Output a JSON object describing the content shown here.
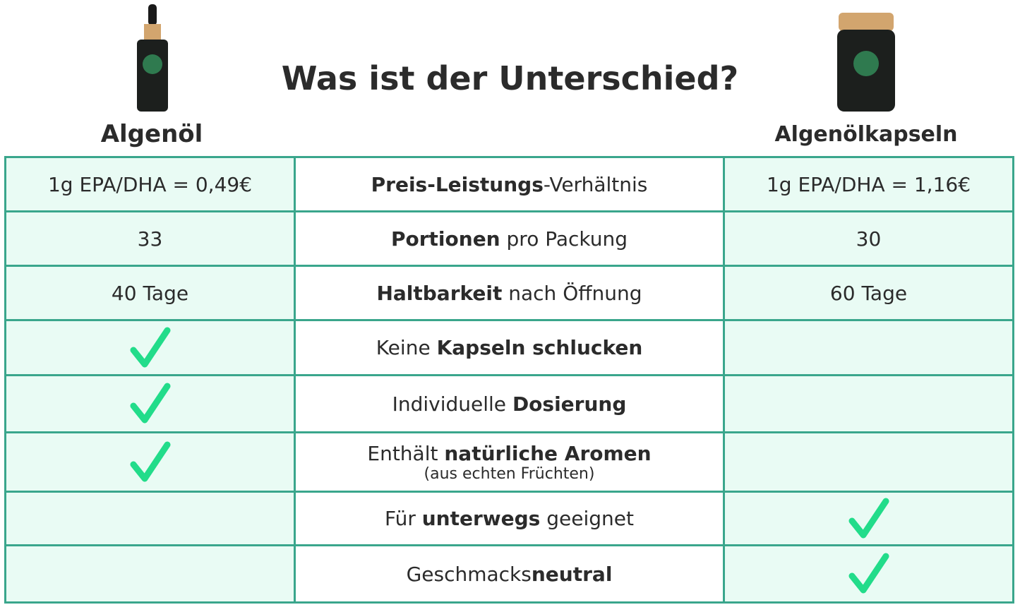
{
  "header": {
    "title": "Was ist der Unterschied?",
    "left_product": "Algenöl",
    "right_product": "Algenölkapseln"
  },
  "table": {
    "rows": [
      {
        "left": "1g EPA/DHA = 0,49€",
        "feature": [
          {
            "text": "Preis-Leistungs",
            "bold": true
          },
          {
            "text": "-Verhältnis",
            "bold": false
          }
        ],
        "right": "1g EPA/DHA = 1,16€"
      },
      {
        "left": "33",
        "feature": [
          {
            "text": "Portionen",
            "bold": true
          },
          {
            "text": " pro Packung",
            "bold": false
          }
        ],
        "right": "30"
      },
      {
        "left": "40 Tage",
        "feature": [
          {
            "text": "Haltbarkeit",
            "bold": true
          },
          {
            "text": " nach Öffnung",
            "bold": false
          }
        ],
        "right": "60 Tage"
      },
      {
        "left_check": true,
        "feature": [
          {
            "text": "Keine ",
            "bold": false
          },
          {
            "text": "Kapseln schlucken",
            "bold": true
          }
        ],
        "right_check": false
      },
      {
        "left_check": true,
        "feature": [
          {
            "text": "Individuelle ",
            "bold": false
          },
          {
            "text": "Dosierung",
            "bold": true
          }
        ],
        "right_check": false
      },
      {
        "left_check": true,
        "feature": [
          {
            "text": "Enthält ",
            "bold": false
          },
          {
            "text": "natürliche Aromen",
            "bold": true
          }
        ],
        "note": "(aus echten Früchten)",
        "right_check": false
      },
      {
        "left_check": false,
        "feature": [
          {
            "text": "Für ",
            "bold": false
          },
          {
            "text": "unterwegs",
            "bold": true
          },
          {
            "text": " geeignet",
            "bold": false
          }
        ],
        "right_check": true
      },
      {
        "left_check": false,
        "feature": [
          {
            "text": "Geschmacks",
            "bold": false
          },
          {
            "text": "neutral",
            "bold": true
          }
        ],
        "right_check": true
      }
    ]
  }
}
